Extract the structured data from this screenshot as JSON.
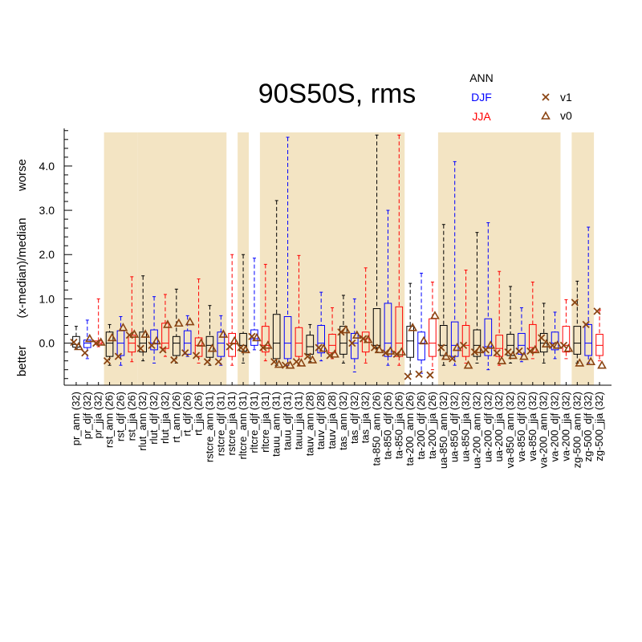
{
  "chart_data": {
    "type": "boxplot",
    "title": "90S50S, rms",
    "ylabel": "(x-median)/median",
    "ylabel_top": "worse",
    "ylabel_bottom": "better",
    "ylim": [
      -0.95,
      4.85
    ],
    "yticks": [
      0.0,
      1.0,
      2.0,
      3.0,
      4.0
    ],
    "ytick_labels": [
      "0.0",
      "1.0",
      "2.0",
      "3.0",
      "4.0"
    ],
    "season_legend": [
      {
        "label": "ANN",
        "color": "#000000"
      },
      {
        "label": "DJF",
        "color": "#0000ff"
      },
      {
        "label": "JJA",
        "color": "#ff0000"
      }
    ],
    "marker_legend": [
      {
        "label": "v1",
        "marker": "x",
        "color": "#8b4513"
      },
      {
        "label": "v0",
        "marker": "triangle",
        "color": "#8b4513"
      }
    ],
    "colors": {
      "ANN": "#000000",
      "DJF": "#0000ff",
      "JJA": "#ff0000",
      "shade": "#f3e4c3",
      "marker": "#8b4513"
    },
    "shaded_groups": [
      [
        3,
        5
      ],
      [
        6,
        13
      ],
      [
        15,
        15
      ],
      [
        17,
        29
      ],
      [
        33,
        43
      ],
      [
        45,
        46
      ]
    ],
    "categories": [
      {
        "label": "pr_ann (32)",
        "season": "ANN",
        "whisker_low": -0.12,
        "q1": -0.09,
        "median": -0.03,
        "q3": 0.15,
        "whisker_high": 0.38,
        "v1": 0.02,
        "v0": -0.08
      },
      {
        "label": "pr_djf (32)",
        "season": "DJF",
        "whisker_low": -0.35,
        "q1": -0.1,
        "median": 0.0,
        "q3": 0.07,
        "whisker_high": 0.52,
        "v1": -0.22,
        "v0": 0.1
      },
      {
        "label": "pr_jja (32)",
        "season": "JJA",
        "whisker_low": -0.08,
        "q1": -0.03,
        "median": 0.0,
        "q3": 0.05,
        "whisker_high": 1.0,
        "v1": 0.0,
        "v0": 0.02
      },
      {
        "label": "rst_ann (26)",
        "season": "ANN",
        "whisker_low": -0.5,
        "q1": -0.3,
        "median": 0.0,
        "q3": 0.25,
        "whisker_high": 0.42,
        "v1": -0.4,
        "v0": 0.12
      },
      {
        "label": "rst_djf (26)",
        "season": "DJF",
        "whisker_low": -0.5,
        "q1": -0.28,
        "median": 0.0,
        "q3": 0.28,
        "whisker_high": 0.6,
        "v1": -0.3,
        "v0": 0.35
      },
      {
        "label": "rst_jja (26)",
        "season": "JJA",
        "whisker_low": -0.42,
        "q1": -0.2,
        "median": 0.0,
        "q3": 0.18,
        "whisker_high": 1.5,
        "v1": 0.18,
        "v0": 0.2
      },
      {
        "label": "rlut_ann (32)",
        "season": "ANN",
        "whisker_low": -0.4,
        "q1": -0.2,
        "median": 0.0,
        "q3": 0.25,
        "whisker_high": 1.52,
        "v1": -0.12,
        "v0": 0.2
      },
      {
        "label": "rlut_djf (32)",
        "season": "DJF",
        "whisker_low": -0.45,
        "q1": -0.15,
        "median": 0.0,
        "q3": 0.3,
        "whisker_high": 1.05,
        "v1": -0.05,
        "v0": 0.05
      },
      {
        "label": "rlut_jja (32)",
        "season": "JJA",
        "whisker_low": -0.3,
        "q1": -0.12,
        "median": 0.0,
        "q3": 0.45,
        "whisker_high": 1.1,
        "v1": -0.15,
        "v0": 0.42
      },
      {
        "label": "rt_ann (26)",
        "season": "ANN",
        "whisker_low": -0.45,
        "q1": -0.28,
        "median": 0.0,
        "q3": 0.15,
        "whisker_high": 1.22,
        "v1": -0.38,
        "v0": 0.45
      },
      {
        "label": "rt_djf (26)",
        "season": "DJF",
        "whisker_low": -0.3,
        "q1": -0.25,
        "median": 0.0,
        "q3": 0.28,
        "whisker_high": 0.62,
        "v1": -0.22,
        "v0": 0.48
      },
      {
        "label": "rt_jja (26)",
        "season": "JJA",
        "whisker_low": -0.45,
        "q1": -0.3,
        "median": -0.05,
        "q3": 0.12,
        "whisker_high": 1.45,
        "v1": -0.28,
        "v0": 0.0
      },
      {
        "label": "rstcre_ann (31)",
        "season": "ANN",
        "whisker_low": -0.5,
        "q1": -0.32,
        "median": -0.05,
        "q3": 0.15,
        "whisker_high": 0.85,
        "v1": -0.42,
        "v0": -0.12
      },
      {
        "label": "rstcre_djf (31)",
        "season": "DJF",
        "whisker_low": -0.5,
        "q1": -0.3,
        "median": 0.0,
        "q3": 0.25,
        "whisker_high": 0.62,
        "v1": -0.42,
        "v0": 0.2
      },
      {
        "label": "rstcre_jja (31)",
        "season": "JJA",
        "whisker_low": -0.5,
        "q1": -0.3,
        "median": 0.0,
        "q3": 0.22,
        "whisker_high": 2.0,
        "v1": -0.08,
        "v0": 0.05
      },
      {
        "label": "rltcre_ann (31)",
        "season": "ANN",
        "whisker_low": -0.45,
        "q1": -0.18,
        "median": -0.05,
        "q3": 0.22,
        "whisker_high": 2.0,
        "v1": -0.1,
        "v0": -0.15
      },
      {
        "label": "rltcre_djf (31)",
        "season": "DJF",
        "whisker_low": -0.15,
        "q1": -0.05,
        "median": 0.1,
        "q3": 0.3,
        "whisker_high": 1.92,
        "v1": 0.15,
        "v0": 0.12
      },
      {
        "label": "rltcre_jja (31)",
        "season": "JJA",
        "whisker_low": -0.4,
        "q1": -0.2,
        "median": -0.05,
        "q3": 0.38,
        "whisker_high": 1.78,
        "v1": -0.1,
        "v0": -0.05
      },
      {
        "label": "tauu_ann (31)",
        "season": "ANN",
        "whisker_low": -0.5,
        "q1": -0.35,
        "median": 0.0,
        "q3": 0.65,
        "whisker_high": 3.22,
        "v1": -0.42,
        "v0": -0.48
      },
      {
        "label": "tauu_djf (31)",
        "season": "DJF",
        "whisker_low": -0.5,
        "q1": -0.35,
        "median": 0.0,
        "q3": 0.6,
        "whisker_high": 4.65,
        "v1": -0.5,
        "v0": -0.5
      },
      {
        "label": "tauu_jja (31)",
        "season": "JJA",
        "whisker_low": -0.5,
        "q1": -0.3,
        "median": 0.0,
        "q3": 0.35,
        "whisker_high": 1.98,
        "v1": -0.42,
        "v0": -0.45
      },
      {
        "label": "tauv_ann (28)",
        "season": "ANN",
        "whisker_low": -0.42,
        "q1": -0.25,
        "median": -0.08,
        "q3": 0.18,
        "whisker_high": 0.42,
        "v1": -0.3,
        "v0": -0.38
      },
      {
        "label": "tauv_djf (28)",
        "season": "DJF",
        "whisker_low": -0.4,
        "q1": -0.22,
        "median": 0.0,
        "q3": 0.4,
        "whisker_high": 1.15,
        "v1": -0.1,
        "v0": -0.12
      },
      {
        "label": "tauv_jja (28)",
        "season": "JJA",
        "whisker_low": -0.35,
        "q1": -0.22,
        "median": -0.05,
        "q3": 0.2,
        "whisker_high": 0.8,
        "v1": -0.28,
        "v0": -0.25
      },
      {
        "label": "tas_ann (32)",
        "season": "ANN",
        "whisker_low": -0.45,
        "q1": -0.25,
        "median": 0.0,
        "q3": 0.38,
        "whisker_high": 1.08,
        "v1": 0.25,
        "v0": 0.3
      },
      {
        "label": "tas_djf (32)",
        "season": "DJF",
        "whisker_low": -0.65,
        "q1": -0.35,
        "median": 0.0,
        "q3": 0.22,
        "whisker_high": 1.0,
        "v1": 0.0,
        "v0": 0.18
      },
      {
        "label": "tas_jja (32)",
        "season": "JJA",
        "whisker_low": -0.45,
        "q1": -0.2,
        "median": 0.1,
        "q3": 0.25,
        "whisker_high": 1.7,
        "v1": 0.1,
        "v0": 0.08
      },
      {
        "label": "ta-850_ann (26)",
        "season": "ANN",
        "whisker_low": -0.2,
        "q1": -0.1,
        "median": -0.05,
        "q3": 0.78,
        "whisker_high": 4.7,
        "v1": -0.1,
        "v0": -0.15
      },
      {
        "label": "ta-850_djf (26)",
        "season": "DJF",
        "whisker_low": -0.5,
        "q1": -0.3,
        "median": 0.0,
        "q3": 0.9,
        "whisker_high": 3.0,
        "v1": -0.22,
        "v0": -0.18
      },
      {
        "label": "ta-850_jja (26)",
        "season": "JJA",
        "whisker_low": -0.5,
        "q1": -0.3,
        "median": 0.0,
        "q3": 0.82,
        "whisker_high": 4.7,
        "v1": -0.25,
        "v0": -0.2
      },
      {
        "label": "ta-200_ann (26)",
        "season": "ANN",
        "whisker_low": -0.7,
        "q1": -0.32,
        "median": 0.05,
        "q3": 0.38,
        "whisker_high": 1.35,
        "v1": -0.75,
        "v0": 0.35
      },
      {
        "label": "ta-200_djf (26)",
        "season": "DJF",
        "whisker_low": -0.68,
        "q1": -0.38,
        "median": 0.0,
        "q3": 0.25,
        "whisker_high": 1.58,
        "v1": -0.7,
        "v0": 0.05
      },
      {
        "label": "ta-200_jja (26)",
        "season": "JJA",
        "whisker_low": -0.6,
        "q1": -0.3,
        "median": 0.0,
        "q3": 0.55,
        "whisker_high": 1.38,
        "v1": -0.72,
        "v0": 0.62
      },
      {
        "label": "ua-850_ann (32)",
        "season": "ANN",
        "whisker_low": -0.5,
        "q1": -0.28,
        "median": -0.05,
        "q3": 0.4,
        "whisker_high": 2.68,
        "v1": -0.1,
        "v0": -0.3
      },
      {
        "label": "ua-850_djf (32)",
        "season": "DJF",
        "whisker_low": -0.5,
        "q1": -0.3,
        "median": -0.05,
        "q3": 0.48,
        "whisker_high": 4.1,
        "v1": -0.35,
        "v0": -0.1
      },
      {
        "label": "ua-850_jja (32)",
        "season": "JJA",
        "whisker_low": -0.45,
        "q1": -0.3,
        "median": -0.05,
        "q3": 0.4,
        "whisker_high": 1.65,
        "v1": -0.05,
        "v0": -0.5
      },
      {
        "label": "ua-200_ann (32)",
        "season": "ANN",
        "whisker_low": -0.45,
        "q1": -0.3,
        "median": -0.05,
        "q3": 0.3,
        "whisker_high": 2.5,
        "v1": -0.2,
        "v0": -0.15
      },
      {
        "label": "ua-200_djf (32)",
        "season": "DJF",
        "whisker_low": -0.6,
        "q1": -0.28,
        "median": -0.08,
        "q3": 0.55,
        "whisker_high": 2.72,
        "v1": -0.15,
        "v0": -0.05
      },
      {
        "label": "ua-200_jja (32)",
        "season": "JJA",
        "whisker_low": -0.5,
        "q1": -0.3,
        "median": -0.12,
        "q3": 0.18,
        "whisker_high": 1.62,
        "v1": -0.22,
        "v0": -0.4
      },
      {
        "label": "va-850_ann (32)",
        "season": "ANN",
        "whisker_low": -0.45,
        "q1": -0.28,
        "median": -0.05,
        "q3": 0.2,
        "whisker_high": 1.28,
        "v1": -0.2,
        "v0": -0.28
      },
      {
        "label": "va-850_djf (32)",
        "season": "DJF",
        "whisker_low": -0.42,
        "q1": -0.25,
        "median": -0.05,
        "q3": 0.22,
        "whisker_high": 0.8,
        "v1": -0.18,
        "v0": -0.3
      },
      {
        "label": "va-850_jja (32)",
        "season": "JJA",
        "whisker_low": -0.35,
        "q1": -0.2,
        "median": -0.1,
        "q3": 0.42,
        "whisker_high": 1.38,
        "v1": -0.18,
        "v0": -0.15
      },
      {
        "label": "va-200_ann (32)",
        "season": "ANN",
        "whisker_low": -0.45,
        "q1": -0.2,
        "median": 0.0,
        "q3": 0.22,
        "whisker_high": 0.9,
        "v1": 0.12,
        "v0": -0.02
      },
      {
        "label": "va-200_djf (32)",
        "season": "DJF",
        "whisker_low": -0.35,
        "q1": -0.15,
        "median": 0.0,
        "q3": 0.25,
        "whisker_high": 0.7,
        "v1": -0.05,
        "v0": -0.05
      },
      {
        "label": "va-200_jja (32)",
        "season": "JJA",
        "whisker_low": -0.35,
        "q1": -0.2,
        "median": -0.05,
        "q3": 0.38,
        "whisker_high": 0.98,
        "v1": -0.05,
        "v0": -0.12
      },
      {
        "label": "zg-500_ann (32)",
        "season": "ANN",
        "whisker_low": -0.45,
        "q1": -0.25,
        "median": 0.0,
        "q3": 0.38,
        "whisker_high": 1.4,
        "v1": 0.92,
        "v0": -0.45
      },
      {
        "label": "zg-500_djf (32)",
        "season": "DJF",
        "whisker_low": -0.45,
        "q1": -0.28,
        "median": 0.0,
        "q3": 0.42,
        "whisker_high": 2.62,
        "v1": 0.42,
        "v0": -0.42
      },
      {
        "label": "zg-500_jja (32)",
        "season": "JJA",
        "whisker_low": -0.4,
        "q1": -0.28,
        "median": -0.05,
        "q3": 0.2,
        "whisker_high": 0.75,
        "v1": 0.72,
        "v0": -0.5
      }
    ]
  }
}
